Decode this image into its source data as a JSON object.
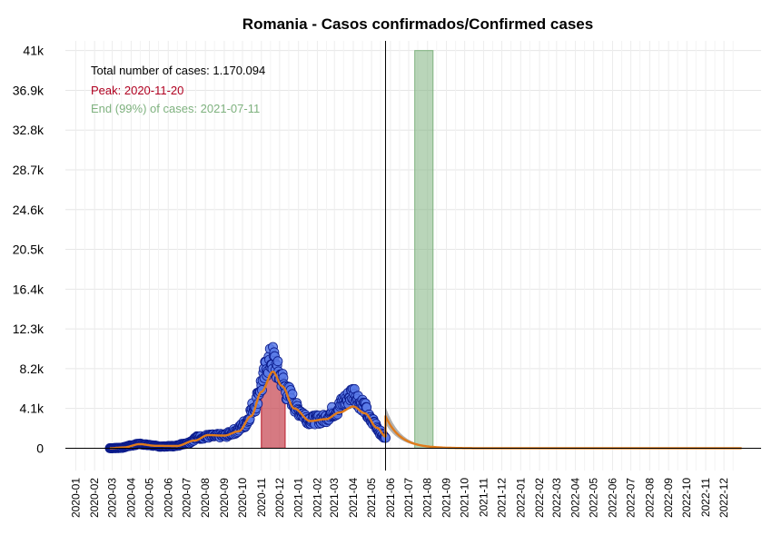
{
  "chart_data": {
    "type": "scatter",
    "title": "Romania - Casos confirmados/Confirmed cases",
    "xlabel": "",
    "ylabel": "",
    "x_range": [
      "2019-12-15",
      "2023-01-31"
    ],
    "ylim": [
      -2300,
      42000
    ],
    "y_ticks": [
      0,
      4100,
      8200,
      12300,
      16400,
      20500,
      24600,
      28700,
      32800,
      36900,
      41000
    ],
    "y_tick_labels": [
      "0",
      "4.1k",
      "8.2k",
      "12.3k",
      "16.4k",
      "20.5k",
      "24.6k",
      "28.7k",
      "32.8k",
      "36.9k",
      "41k"
    ],
    "x_tick_labels": [
      "2020-01",
      "2020-02",
      "2020-03",
      "2020-04",
      "2020-05",
      "2020-06",
      "2020-07",
      "2020-08",
      "2020-09",
      "2020-10",
      "2020-11",
      "2020-12",
      "2021-01",
      "2021-02",
      "2021-03",
      "2021-04",
      "2021-05",
      "2021-06",
      "2021-07",
      "2021-08",
      "2021-09",
      "2021-10",
      "2021-11",
      "2021-12",
      "2022-01",
      "2022-02",
      "2022-03",
      "2022-04",
      "2022-05",
      "2022-06",
      "2022-07",
      "2022-08",
      "2022-09",
      "2022-10",
      "2022-11",
      "2022-12"
    ],
    "grid": true,
    "annotations": {
      "total": "Total number of cases: 1.170.094",
      "peak": "Peak: 2020-11-20",
      "end": "End (99%) of cases: 2021-07-11"
    },
    "vertical_line_date": "2021-05-24",
    "peak_band": [
      "2020-11-01",
      "2020-12-10"
    ],
    "end_band": [
      "2021-07-11",
      "2021-08-10"
    ],
    "observed_range": [
      "2020-02-26",
      "2021-05-24"
    ],
    "observed_anchor_points": [
      [
        "2020-02-26",
        0
      ],
      [
        "2020-03-15",
        40
      ],
      [
        "2020-04-01",
        280
      ],
      [
        "2020-04-15",
        450
      ],
      [
        "2020-05-01",
        320
      ],
      [
        "2020-05-20",
        170
      ],
      [
        "2020-06-10",
        220
      ],
      [
        "2020-07-01",
        500
      ],
      [
        "2020-07-20",
        1100
      ],
      [
        "2020-08-10",
        1250
      ],
      [
        "2020-09-01",
        1300
      ],
      [
        "2020-09-20",
        1750
      ],
      [
        "2020-10-05",
        2500
      ],
      [
        "2020-10-20",
        4300
      ],
      [
        "2020-11-01",
        6500
      ],
      [
        "2020-11-12",
        8800
      ],
      [
        "2020-11-20",
        9200
      ],
      [
        "2020-12-01",
        7500
      ],
      [
        "2020-12-15",
        5600
      ],
      [
        "2021-01-01",
        3900
      ],
      [
        "2021-01-20",
        2900
      ],
      [
        "2021-02-10",
        3000
      ],
      [
        "2021-03-01",
        3800
      ],
      [
        "2021-03-20",
        5000
      ],
      [
        "2021-04-01",
        5700
      ],
      [
        "2021-04-15",
        4600
      ],
      [
        "2021-05-01",
        2800
      ],
      [
        "2021-05-24",
        1100
      ]
    ],
    "fit_anchor_points": [
      [
        "2020-02-26",
        0
      ],
      [
        "2020-03-20",
        80
      ],
      [
        "2020-04-15",
        420
      ],
      [
        "2020-05-10",
        250
      ],
      [
        "2020-06-15",
        230
      ],
      [
        "2020-07-15",
        800
      ],
      [
        "2020-08-05",
        1350
      ],
      [
        "2020-09-01",
        1300
      ],
      [
        "2020-09-25",
        1750
      ],
      [
        "2020-10-15",
        3300
      ],
      [
        "2020-11-01",
        5800
      ],
      [
        "2020-11-20",
        7900
      ],
      [
        "2020-12-05",
        6400
      ],
      [
        "2020-12-25",
        4100
      ],
      [
        "2021-01-20",
        2800
      ],
      [
        "2021-02-15",
        3000
      ],
      [
        "2021-03-10",
        3700
      ],
      [
        "2021-04-01",
        4300
      ],
      [
        "2021-04-20",
        3600
      ],
      [
        "2021-05-10",
        2100
      ],
      [
        "2021-05-24",
        1200
      ]
    ],
    "forecast": {
      "start_value": 3300,
      "band_upper_start": 4300,
      "band_lower_start": 2500,
      "start_date": "2021-05-24",
      "end_date": "2022-12-31",
      "decay_days": 24
    },
    "colors": {
      "points_fill": "#5a7be8",
      "points_stroke": "#0a1a8a",
      "fit_line": "#e07b1a",
      "peak_band": "#c0323f",
      "end_band": "#7fb27f",
      "forecast_band": "#a9a9a9",
      "ann_total": "#000000",
      "ann_peak": "#b00020",
      "ann_end": "#7fb27f"
    }
  }
}
